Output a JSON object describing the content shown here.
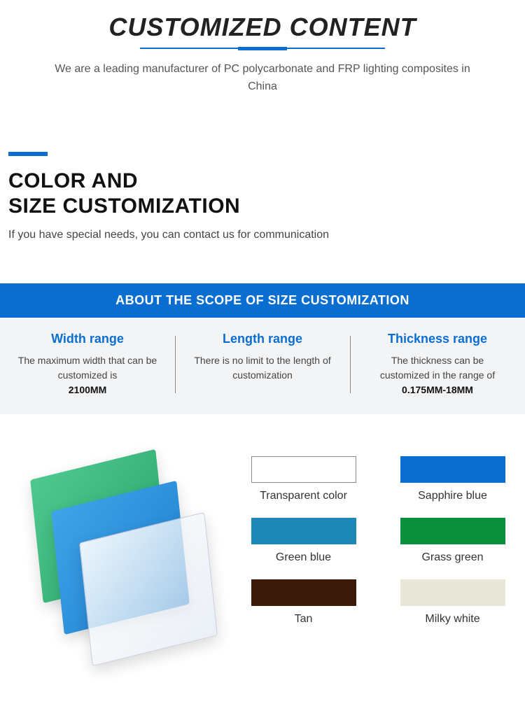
{
  "header": {
    "title": "CUSTOMIZED CONTENT",
    "subtitle": "We are a leading manufacturer of PC polycarbonate and FRP lighting composites in China",
    "accent_color": "#0a6ed1"
  },
  "section2": {
    "heading_line1": "COLOR AND",
    "heading_line2": "SIZE CUSTOMIZATION",
    "paragraph": "If you have special needs, you can contact us for communication"
  },
  "scope": {
    "header": "ABOUT THE SCOPE OF SIZE CUSTOMIZATION",
    "header_bg": "#0a6ed1",
    "body_bg": "#f3f4f5",
    "columns": [
      {
        "title": "Width range",
        "text": "The maximum width that can be customized is",
        "strong": "2100MM"
      },
      {
        "title": "Length range",
        "text": "There is no limit to the length of customization",
        "strong": ""
      },
      {
        "title": "Thickness range",
        "text": "The thickness can be customized in the range of",
        "strong": "0.175MM-18MM"
      }
    ]
  },
  "colors": {
    "illustration_sheets": [
      "#4fc98f",
      "#3fa4e8",
      "rgba(240,245,250,0.7)"
    ],
    "swatches": [
      {
        "label": "Transparent color",
        "color": "#ffffff",
        "bordered": true
      },
      {
        "label": "Sapphire blue",
        "color": "#0a6ed1",
        "bordered": false
      },
      {
        "label": "Green blue",
        "color": "#1e88b8",
        "bordered": false
      },
      {
        "label": "Grass green",
        "color": "#0a8f3c",
        "bordered": false
      },
      {
        "label": "Tan",
        "color": "#3b1a0a",
        "bordered": false
      },
      {
        "label": "Milky white",
        "color": "#e8e7d8",
        "bordered": false
      }
    ]
  }
}
